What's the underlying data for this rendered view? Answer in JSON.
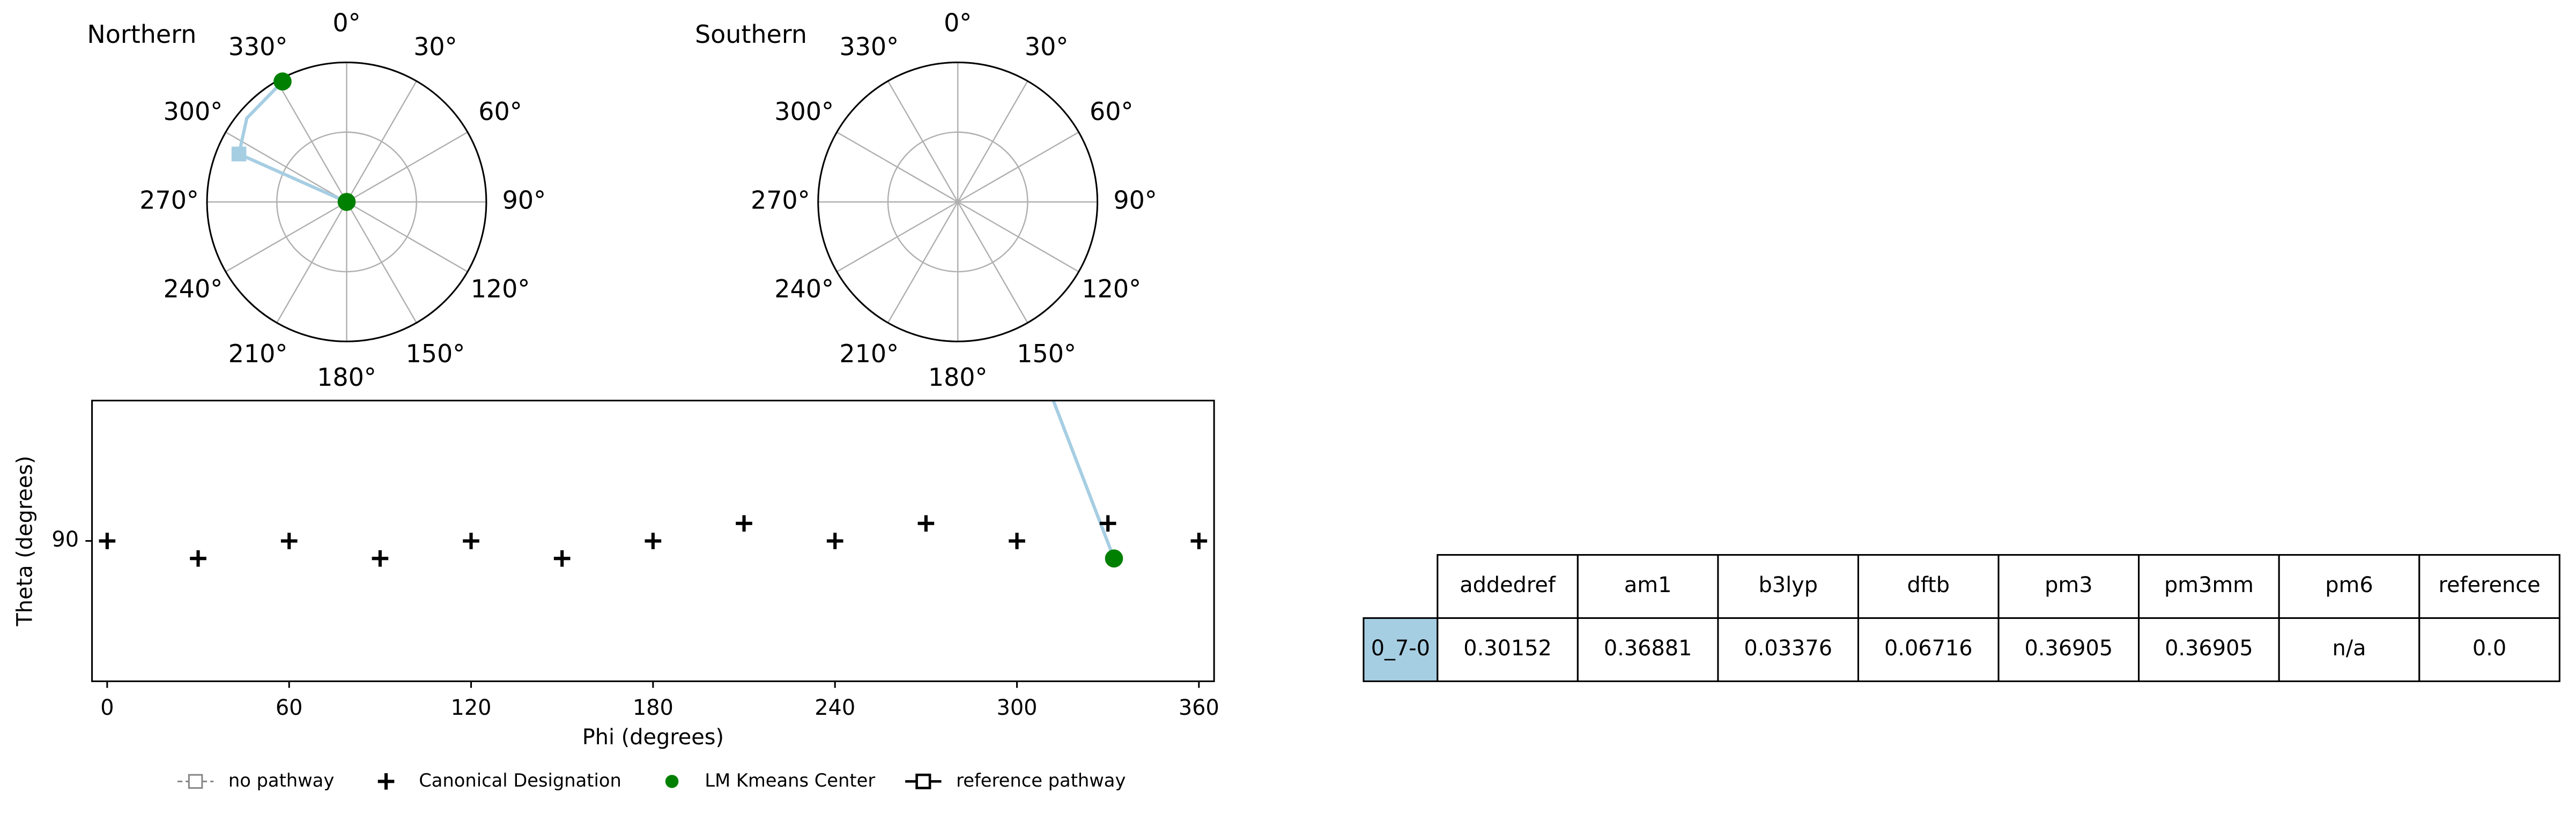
{
  "chart_data": [
    {
      "type": "polar",
      "title": "Northern",
      "rlim": [
        0,
        90
      ],
      "rticks": [
        45
      ],
      "grid": true,
      "thetaticks": [
        {
          "value": 0,
          "label": "0°"
        },
        {
          "value": 30,
          "label": "30°"
        },
        {
          "value": 60,
          "label": "60°"
        },
        {
          "value": 90,
          "label": "90°"
        },
        {
          "value": 120,
          "label": "120°"
        },
        {
          "value": 150,
          "label": "150°"
        },
        {
          "value": 180,
          "label": "180°"
        },
        {
          "value": 210,
          "label": "210°"
        },
        {
          "value": 240,
          "label": "240°"
        },
        {
          "value": 270,
          "label": "270°"
        },
        {
          "value": 300,
          "label": "300°"
        },
        {
          "value": 330,
          "label": "330°"
        }
      ],
      "series": [
        {
          "color": "#a6cee3",
          "marker": "line",
          "phi": [
            294,
            294,
            310,
            332
          ],
          "r": [
            0,
            76,
            84,
            88
          ]
        },
        {
          "color": "#a6cee3",
          "marker": "square",
          "phi": [
            294
          ],
          "r": [
            76
          ]
        },
        {
          "color": "#008000",
          "marker": "circle",
          "phi": [
            0,
            332
          ],
          "r": [
            0,
            88
          ]
        }
      ]
    },
    {
      "type": "polar",
      "title": "Southern",
      "rlim": [
        0,
        90
      ],
      "rticks": [
        45
      ],
      "grid": true,
      "thetaticks": [
        {
          "value": 0,
          "label": "0°"
        },
        {
          "value": 30,
          "label": "30°"
        },
        {
          "value": 60,
          "label": "60°"
        },
        {
          "value": 90,
          "label": "90°"
        },
        {
          "value": 120,
          "label": "120°"
        },
        {
          "value": 150,
          "label": "150°"
        },
        {
          "value": 180,
          "label": "180°"
        },
        {
          "value": 210,
          "label": "210°"
        },
        {
          "value": 240,
          "label": "240°"
        },
        {
          "value": 270,
          "label": "270°"
        },
        {
          "value": 300,
          "label": "300°"
        },
        {
          "value": 330,
          "label": "330°"
        }
      ],
      "series": []
    },
    {
      "type": "scatter",
      "xlabel": "Phi (degrees)",
      "ylabel": "Theta (degrees)",
      "xlim": [
        -5,
        365
      ],
      "ylim": [
        50,
        130
      ],
      "xticks": [
        0,
        60,
        120,
        180,
        240,
        300,
        360
      ],
      "yticks": [
        90
      ],
      "legend": "lower center",
      "series": [
        {
          "color": "#a6cee3",
          "marker": "line",
          "x": [
            332,
            312
          ],
          "y": [
            85,
            130
          ]
        },
        {
          "name": "no pathway",
          "color": "#888888",
          "marker": "square-dashed",
          "x": [],
          "y": []
        },
        {
          "name": "Canonical Designation",
          "color": "#000000",
          "marker": "plus",
          "x": [
            0,
            30,
            60,
            90,
            120,
            150,
            180,
            210,
            240,
            270,
            300,
            330,
            360
          ],
          "y": [
            90,
            85,
            90,
            85,
            90,
            85,
            90,
            95,
            90,
            95,
            90,
            95,
            90
          ]
        },
        {
          "name": "LM Kmeans Center",
          "color": "#008000",
          "marker": "circle",
          "x": [
            332
          ],
          "y": [
            85
          ]
        },
        {
          "name": "reference pathway",
          "color": "#000000",
          "marker": "square-line",
          "x": [],
          "y": []
        }
      ]
    }
  ],
  "table": {
    "columns": [
      "addedref",
      "am1",
      "b3lyp",
      "dftb",
      "pm3",
      "pm3mm",
      "pm6",
      "reference"
    ],
    "rows": [
      {
        "label": "0_7-0",
        "label_color": "#a6cee3",
        "cells": [
          "0.30152",
          "0.36881",
          "0.03376",
          "0.06716",
          "0.36905",
          "0.36905",
          "n/a",
          "0.0"
        ]
      }
    ]
  }
}
